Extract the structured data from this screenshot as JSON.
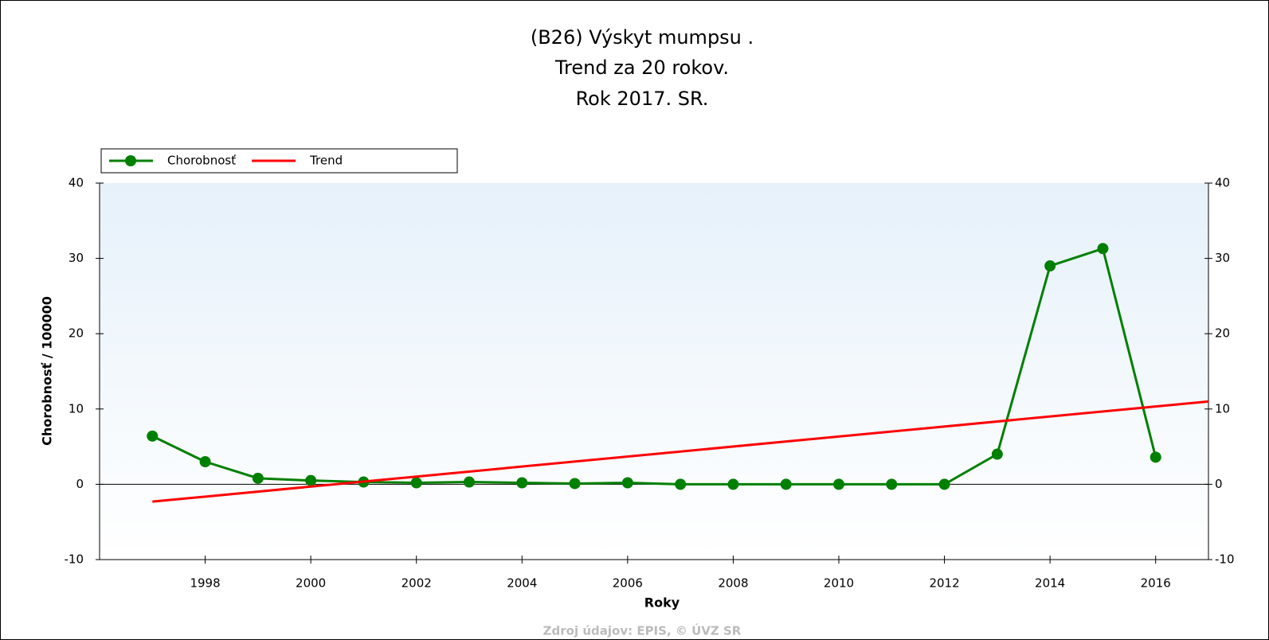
{
  "chart_data": {
    "type": "line",
    "title": [
      "(B26) Výskyt mumpsu .",
      "Trend za 20 rokov.",
      "Rok 2017. SR."
    ],
    "x_label": "Roky",
    "y_label": "Chorobnosť / 100000",
    "source": "Zdroj údajov: EPIS, © ÚVZ SR",
    "x": [
      1997,
      1998,
      1999,
      2000,
      2001,
      2002,
      2003,
      2004,
      2005,
      2006,
      2007,
      2008,
      2009,
      2010,
      2011,
      2012,
      2013,
      2014,
      2015,
      2016
    ],
    "series": [
      {
        "name": "Chorobnosť",
        "color": "#008000",
        "markers": true,
        "values": [
          6.4,
          3.0,
          0.8,
          0.5,
          0.3,
          0.2,
          0.3,
          0.2,
          0.1,
          0.2,
          0.0,
          0.0,
          0.0,
          0.0,
          0.0,
          0.0,
          4.0,
          29.0,
          31.3,
          3.6
        ]
      },
      {
        "name": "Trend",
        "color": "#ff0000",
        "markers": false,
        "x": [
          1997,
          2017
        ],
        "values": [
          -2.3,
          11.0
        ]
      }
    ],
    "xlim": [
      1996,
      2017
    ],
    "xticks": [
      1998,
      2000,
      2002,
      2004,
      2006,
      2008,
      2010,
      2012,
      2014,
      2016
    ],
    "ylim": [
      -10,
      40
    ],
    "yticks": [
      -10,
      0,
      10,
      20,
      30,
      40
    ],
    "y2lim": [
      -10,
      40
    ],
    "y2ticks": [
      -10,
      0,
      10,
      20,
      30,
      40
    ],
    "legend": "top-left"
  }
}
